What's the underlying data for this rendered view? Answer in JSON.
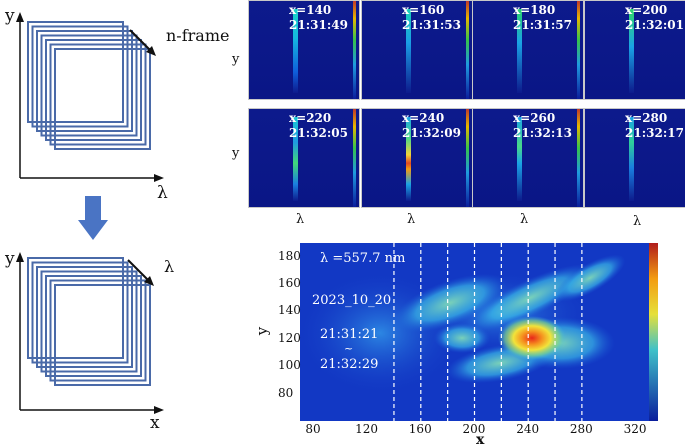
{
  "top_left_diagram": {
    "y_axis": "y",
    "x_axis": "λ",
    "stack_label": "n-frame"
  },
  "bottom_left_diagram": {
    "y_axis": "y",
    "x_axis": "x",
    "stack_label": "λ"
  },
  "panels_axis": {
    "y": "y",
    "lambda": "λ"
  },
  "panels": [
    {
      "x": "x=140",
      "time": "21:31:49"
    },
    {
      "x": "x=160",
      "time": "21:31:53"
    },
    {
      "x": "x=180",
      "time": "21:31:57"
    },
    {
      "x": "x=200",
      "time": "21:32:01"
    },
    {
      "x": "x=220",
      "time": "21:32:05"
    },
    {
      "x": "x=240",
      "time": "21:32:09"
    },
    {
      "x": "x=260",
      "time": "21:32:13"
    },
    {
      "x": "x=280",
      "time": "21:32:17"
    }
  ],
  "colors": {
    "frame_blue": "#4a6aa8",
    "arrow_blue": "#4a74c4",
    "panel_bg": "#0d1a8c"
  },
  "heatmap": {
    "wavelength": "λ =557.7 nm",
    "date": "2023_10_20",
    "time_start": "21:31:21",
    "tilde": "~",
    "time_end": "21:32:29",
    "y_label": "y",
    "x_label": "x",
    "y_ticks": [
      "180",
      "160",
      "140",
      "120",
      "100",
      "80"
    ],
    "x_ticks": [
      "80",
      "120",
      "160",
      "200",
      "240",
      "280",
      "320"
    ],
    "dashed_x": [
      140,
      160,
      180,
      200,
      220,
      240,
      260,
      280
    ]
  }
}
